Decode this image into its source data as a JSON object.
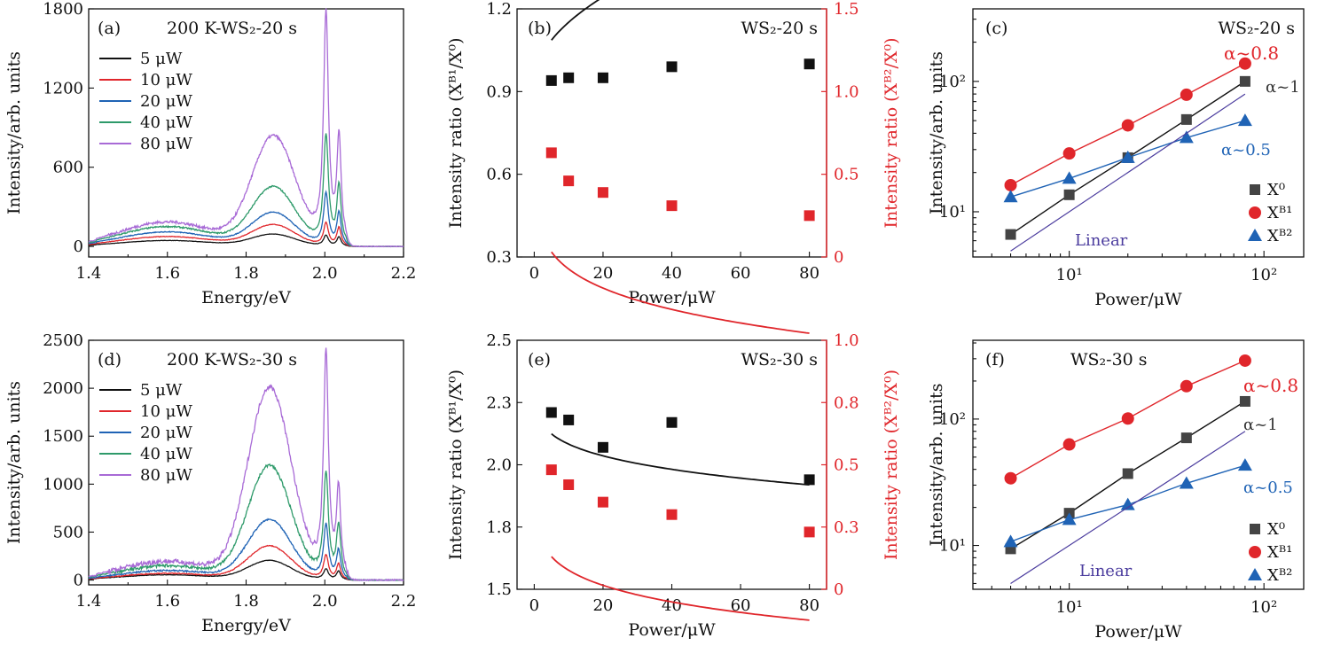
{
  "figure": {
    "colors": {
      "black": "#111111",
      "red": "#e0262b",
      "blue": "#1f63b5",
      "green": "#2e9a6a",
      "purple": "#a86ad6",
      "gray": "#444444",
      "navy": "#4b3c9e"
    }
  },
  "chart_data": [
    {
      "panel": "a",
      "type": "line",
      "label": "(a)",
      "title": "200 K-WS₂-20 s",
      "xlabel": "Energy/eV",
      "ylabel": "Intensity/arb. units",
      "xlim": [
        1.4,
        2.2
      ],
      "ylim": [
        -80,
        1800
      ],
      "xticks": [
        "1.4",
        "1.6",
        "1.8",
        "2.0",
        "2.2"
      ],
      "yticks": [
        "0",
        "600",
        "1200",
        "1800"
      ],
      "legend": [
        "5 μW",
        "10 μW",
        "20 μW",
        "40 μW",
        "80 μW"
      ],
      "legend_colors": [
        "#111111",
        "#e0262b",
        "#1f63b5",
        "#2e9a6a",
        "#a86ad6"
      ],
      "series": [
        {
          "name": "5 μW",
          "color": "#111111",
          "peaks": {
            "baseline": 0,
            "pl": 45,
            "pc": 1.6,
            "p1": 90,
            "c1": 1.87,
            "p2": 80,
            "c2": 2.003,
            "p3": 70,
            "c3": 2.036
          }
        },
        {
          "name": "10 μW",
          "color": "#e0262b",
          "peaks": {
            "baseline": 0,
            "pl": 75,
            "pc": 1.6,
            "p1": 160,
            "c1": 1.87,
            "p2": 170,
            "c2": 2.003,
            "p3": 140,
            "c3": 2.036
          }
        },
        {
          "name": "20 μW",
          "color": "#1f63b5",
          "peaks": {
            "baseline": 0,
            "pl": 110,
            "pc": 1.6,
            "p1": 250,
            "c1": 1.87,
            "p2": 390,
            "c2": 2.003,
            "p3": 250,
            "c3": 2.036
          }
        },
        {
          "name": "40 μW",
          "color": "#2e9a6a",
          "peaks": {
            "baseline": 0,
            "pl": 150,
            "pc": 1.6,
            "p1": 440,
            "c1": 1.87,
            "p2": 820,
            "c2": 2.003,
            "p3": 450,
            "c3": 2.036
          }
        },
        {
          "name": "80 μW",
          "color": "#a86ad6",
          "peaks": {
            "baseline": 0,
            "pl": 185,
            "pc": 1.6,
            "p1": 820,
            "c1": 1.87,
            "p2": 1730,
            "c2": 2.003,
            "p3": 800,
            "c3": 2.036
          }
        }
      ]
    },
    {
      "panel": "b",
      "type": "scatter",
      "label": "(b)",
      "title": "WS₂-20 s",
      "xlabel": "Power/μW",
      "ylabel_left": "Intensity ratio (Xᴮ¹/X⁰)",
      "ylabel_right": "Intensity ratio (Xᴮ²/X⁰)",
      "xlim": [
        -5,
        85
      ],
      "ylim_left": [
        0.3,
        1.2
      ],
      "ylim_right": [
        0,
        1.5
      ],
      "xticks": [
        "0",
        "20",
        "40",
        "60",
        "80"
      ],
      "yticks_left": [
        "0.3",
        "0.6",
        "0.9",
        "1.2"
      ],
      "yticks_right": [
        "0",
        "0.5",
        "1.0",
        "1.5"
      ],
      "series": [
        {
          "name": "Xᴮ¹/X⁰",
          "axis": "left",
          "color": "#111111",
          "x": [
            5,
            10,
            20,
            40,
            80
          ],
          "y": [
            0.94,
            0.95,
            0.95,
            0.99,
            1.0
          ],
          "fit": {
            "a": 0.93,
            "b": 0.07,
            "c": 0.5
          }
        },
        {
          "name": "Xᴮ²/X⁰",
          "axis": "right",
          "color": "#e0262b",
          "x": [
            5,
            10,
            20,
            40,
            80
          ],
          "y": [
            0.63,
            0.46,
            0.39,
            0.31,
            0.25
          ],
          "fit": {
            "a": 0.91,
            "b": -0.68,
            "c": 0.16
          }
        }
      ]
    },
    {
      "panel": "c",
      "type": "scatter",
      "scale": "log-log",
      "label": "(c)",
      "title": "WS₂-20 s",
      "xlabel": "Power/μW",
      "ylabel": "Intensity/arb. units",
      "xlim": [
        3.2,
        160
      ],
      "ylim": [
        4.5,
        360
      ],
      "xticks": [
        "10¹",
        "10²"
      ],
      "yticks": [
        "10¹",
        "10²"
      ],
      "legend": [
        "X⁰",
        "Xᴮ¹",
        "Xᴮ²"
      ],
      "annotations": [
        "α~0.8",
        "α~1",
        "α~0.5",
        "Linear"
      ],
      "series": [
        {
          "name": "X⁰",
          "marker": "square",
          "color": "#444444",
          "x": [
            5,
            10,
            20,
            40,
            80
          ],
          "y": [
            6.7,
            13.5,
            26,
            51,
            100
          ]
        },
        {
          "name": "Xᴮ¹",
          "marker": "circle",
          "color": "#e0262b",
          "x": [
            5,
            10,
            20,
            40,
            80
          ],
          "y": [
            16,
            28,
            46,
            79,
            137
          ]
        },
        {
          "name": "Xᴮ²",
          "marker": "triangle",
          "color": "#1f63b5",
          "x": [
            5,
            10,
            20,
            40,
            80
          ],
          "y": [
            13,
            18,
            26,
            37,
            50
          ]
        },
        {
          "name": "Linear",
          "marker": "none",
          "color": "#4b3c9e",
          "x": [
            5,
            80
          ],
          "y": [
            5,
            80
          ]
        }
      ]
    },
    {
      "panel": "d",
      "type": "line",
      "label": "(d)",
      "title": "200 K-WS₂-30 s",
      "xlabel": "Energy/eV",
      "ylabel": "Intensity/arb. units",
      "xlim": [
        1.4,
        2.2
      ],
      "ylim": [
        -50,
        2500
      ],
      "xticks": [
        "1.4",
        "1.6",
        "1.8",
        "2.0",
        "2.2"
      ],
      "yticks": [
        "0",
        "500",
        "1000",
        "1500",
        "2000",
        "2500"
      ],
      "legend": [
        "5 μW",
        "10 μW",
        "20 μW",
        "40 μW",
        "80 μW"
      ],
      "legend_colors": [
        "#111111",
        "#e0262b",
        "#1f63b5",
        "#2e9a6a",
        "#a86ad6"
      ],
      "series": [
        {
          "name": "5 μW",
          "color": "#111111",
          "peaks": {
            "baseline": 0,
            "pl": 55,
            "pc": 1.6,
            "p1": 200,
            "c1": 1.86,
            "p2": 110,
            "c2": 2.003,
            "p3": 90,
            "c3": 2.035
          }
        },
        {
          "name": "10 μW",
          "color": "#e0262b",
          "peaks": {
            "baseline": 0,
            "pl": 70,
            "pc": 1.6,
            "p1": 350,
            "c1": 1.86,
            "p2": 250,
            "c2": 2.003,
            "p3": 160,
            "c3": 2.035
          }
        },
        {
          "name": "20 μW",
          "color": "#1f63b5",
          "peaks": {
            "baseline": 0,
            "pl": 100,
            "pc": 1.6,
            "p1": 620,
            "c1": 1.86,
            "p2": 560,
            "c2": 2.003,
            "p3": 300,
            "c3": 2.035
          }
        },
        {
          "name": "40 μW",
          "color": "#2e9a6a",
          "peaks": {
            "baseline": 0,
            "pl": 150,
            "pc": 1.6,
            "p1": 1180,
            "c1": 1.86,
            "p2": 1080,
            "c2": 2.003,
            "p3": 550,
            "c3": 2.035
          }
        },
        {
          "name": "80 μW",
          "color": "#a86ad6",
          "peaks": {
            "baseline": 0,
            "pl": 195,
            "pc": 1.6,
            "p1": 1990,
            "c1": 1.86,
            "p2": 2310,
            "c2": 2.003,
            "p3": 900,
            "c3": 2.035
          }
        }
      ]
    },
    {
      "panel": "e",
      "type": "scatter",
      "label": "(e)",
      "title": "WS₂-30 s",
      "xlabel": "Power/μW",
      "ylabel_left": "Intensity ratio (Xᴮ¹/X⁰)",
      "ylabel_right": "Intensity ratio (Xᴮ²/X⁰)",
      "xlim": [
        -5,
        85
      ],
      "ylim_left": [
        1.5,
        2.5
      ],
      "ylim_right": [
        0,
        1.0
      ],
      "xticks": [
        "0",
        "20",
        "40",
        "60",
        "80"
      ],
      "yticks_left": [
        "1.5",
        "1.8",
        "2.0",
        "2.3",
        "2.5"
      ],
      "yticks_right": [
        "0",
        "0.3",
        "0.5",
        "0.8",
        "1.0"
      ],
      "series": [
        {
          "name": "Xᴮ¹/X⁰",
          "axis": "left",
          "color": "#111111",
          "x": [
            5,
            10,
            20,
            40,
            80
          ],
          "y": [
            2.21,
            2.18,
            2.07,
            2.17,
            1.94
          ],
          "fit": {
            "a": 2.4,
            "b": -0.2,
            "c": 0.2
          }
        },
        {
          "name": "Xᴮ²/X⁰",
          "axis": "right",
          "color": "#e0262b",
          "x": [
            5,
            10,
            20,
            40,
            80
          ],
          "y": [
            0.48,
            0.42,
            0.35,
            0.3,
            0.23
          ],
          "fit": {
            "a": 0.67,
            "b": -0.43,
            "c": 0.14
          }
        }
      ]
    },
    {
      "panel": "f",
      "type": "scatter",
      "scale": "log-log",
      "label": "(f)",
      "title": "WS₂-30 s",
      "xlabel": "Power/μW",
      "ylabel": "Intensity/arb. units",
      "xlim": [
        3.2,
        160
      ],
      "ylim": [
        4.5,
        420
      ],
      "xticks": [
        "10¹",
        "10²"
      ],
      "yticks": [
        "10¹",
        "10²"
      ],
      "legend": [
        "X⁰",
        "Xᴮ¹",
        "Xᴮ²"
      ],
      "annotations": [
        "α~0.8",
        "α~1",
        "α~0.5",
        "Linear"
      ],
      "series": [
        {
          "name": "X⁰",
          "marker": "square",
          "color": "#444444",
          "x": [
            5,
            10,
            20,
            40,
            80
          ],
          "y": [
            9.4,
            18,
            37,
            71,
            138
          ]
        },
        {
          "name": "Xᴮ¹",
          "marker": "circle",
          "color": "#e0262b",
          "x": [
            5,
            10,
            20,
            40,
            80
          ],
          "y": [
            34,
            63,
            101,
            182,
            290
          ]
        },
        {
          "name": "Xᴮ²",
          "marker": "triangle",
          "color": "#1f63b5",
          "x": [
            5,
            10,
            20,
            40,
            80
          ],
          "y": [
            10.7,
            16,
            21,
            31,
            43
          ]
        },
        {
          "name": "Linear",
          "marker": "none",
          "color": "#4b3c9e",
          "x": [
            5,
            80
          ],
          "y": [
            5,
            80
          ]
        }
      ]
    }
  ]
}
